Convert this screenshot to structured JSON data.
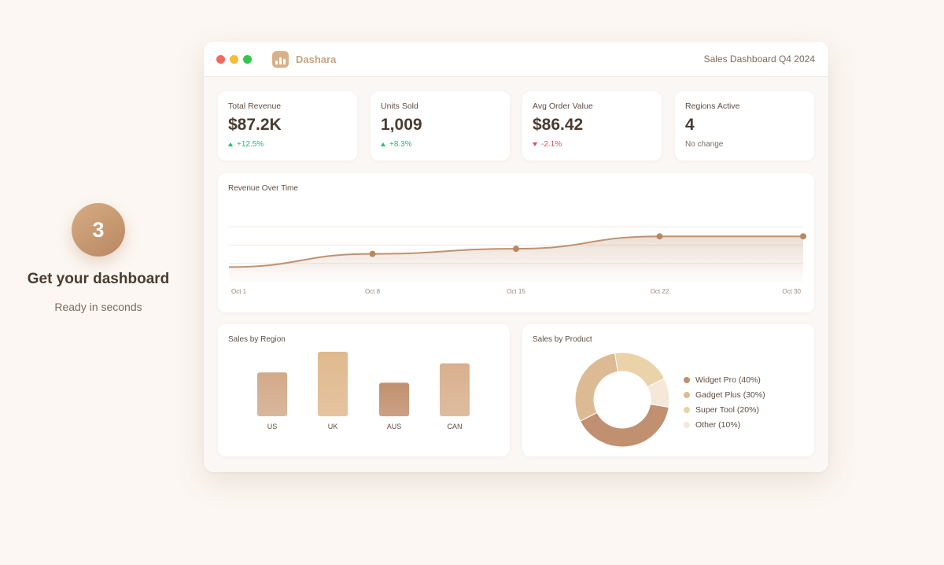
{
  "step": {
    "number": "3",
    "title": "Get your dashboard",
    "subtitle": "Ready in seconds"
  },
  "window": {
    "brand": "Dashara",
    "title": "Sales Dashboard Q4 2024"
  },
  "kpis": [
    {
      "label": "Total Revenue",
      "value": "$87.2K",
      "delta": "+12.5%",
      "trend": "up"
    },
    {
      "label": "Units Sold",
      "value": "1,009",
      "delta": "+8.3%",
      "trend": "up"
    },
    {
      "label": "Avg Order Value",
      "value": "$86.42",
      "delta": "-2.1%",
      "trend": "down"
    },
    {
      "label": "Regions Active",
      "value": "4",
      "delta": "No change",
      "trend": "neutral"
    }
  ],
  "colors": {
    "accent": "#c9a27e",
    "up": "#2bb673",
    "down": "#e0505a",
    "line": "#c09270"
  },
  "chart_data": [
    {
      "type": "line",
      "title": "Revenue Over Time",
      "x": [
        "Oct 1",
        "Oct 8",
        "Oct 15",
        "Oct 22",
        "Oct 30"
      ],
      "series": [
        {
          "values": [
            20,
            38,
            45,
            62,
            62
          ]
        }
      ],
      "ylim": [
        0,
        100
      ],
      "grid": true,
      "area_fill": true
    },
    {
      "type": "bar",
      "title": "Sales by Region",
      "categories": [
        "US",
        "UK",
        "AUS",
        "CAN"
      ],
      "values": [
        68,
        100,
        52,
        82
      ],
      "colors": [
        "#d2aa8a",
        "#e0b98e",
        "#c19070",
        "#d9b08e"
      ]
    },
    {
      "type": "pie",
      "title": "Sales by Product",
      "donut": true,
      "categories": [
        "Widget Pro (40%)",
        "Gadget Plus (30%)",
        "Super Tool (20%)",
        "Other (10%)"
      ],
      "values": [
        40,
        30,
        20,
        10
      ],
      "colors": [
        "#c19070",
        "#dcbb94",
        "#ead3a9",
        "#f5e8d8"
      ]
    }
  ]
}
